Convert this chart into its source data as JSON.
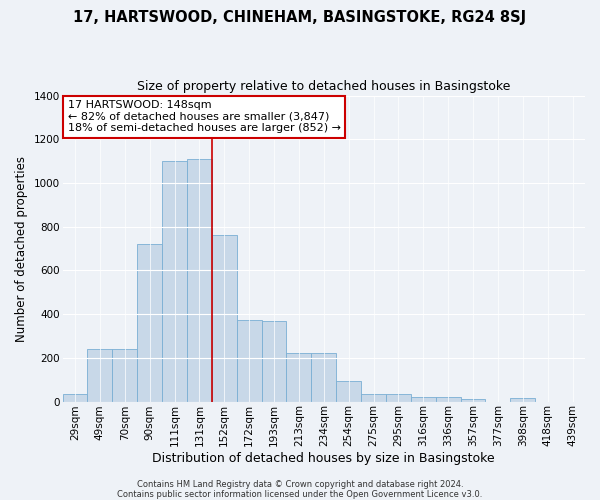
{
  "title": "17, HARTSWOOD, CHINEHAM, BASINGSTOKE, RG24 8SJ",
  "subtitle": "Size of property relative to detached houses in Basingstoke",
  "xlabel": "Distribution of detached houses by size in Basingstoke",
  "ylabel": "Number of detached properties",
  "footer_line1": "Contains HM Land Registry data © Crown copyright and database right 2024.",
  "footer_line2": "Contains public sector information licensed under the Open Government Licence v3.0.",
  "categories": [
    "29sqm",
    "49sqm",
    "70sqm",
    "90sqm",
    "111sqm",
    "131sqm",
    "152sqm",
    "172sqm",
    "193sqm",
    "213sqm",
    "234sqm",
    "254sqm",
    "275sqm",
    "295sqm",
    "316sqm",
    "336sqm",
    "357sqm",
    "377sqm",
    "398sqm",
    "418sqm",
    "439sqm"
  ],
  "values": [
    35,
    240,
    240,
    720,
    1100,
    1110,
    760,
    375,
    370,
    220,
    220,
    95,
    35,
    35,
    20,
    20,
    10,
    0,
    15,
    0,
    0
  ],
  "bar_color": "#c8d8e8",
  "bar_edge_color": "#7aafd4",
  "annotation_line_color": "#cc0000",
  "annotation_box_color": "#ffffff",
  "annotation_box_edge_color": "#cc0000",
  "annotation_box_text_line1": "17 HARTSWOOD: 148sqm",
  "annotation_box_text_line2": "← 82% of detached houses are smaller (3,847)",
  "annotation_box_text_line3": "18% of semi-detached houses are larger (852) →",
  "ylim": [
    0,
    1400
  ],
  "yticks": [
    0,
    200,
    400,
    600,
    800,
    1000,
    1200,
    1400
  ],
  "background_color": "#eef2f7",
  "plot_background_color": "#eef2f7",
  "title_fontsize": 10.5,
  "subtitle_fontsize": 9,
  "tick_fontsize": 7.5,
  "ylabel_fontsize": 8.5,
  "xlabel_fontsize": 9,
  "annotation_fontsize": 8,
  "footer_fontsize": 6
}
